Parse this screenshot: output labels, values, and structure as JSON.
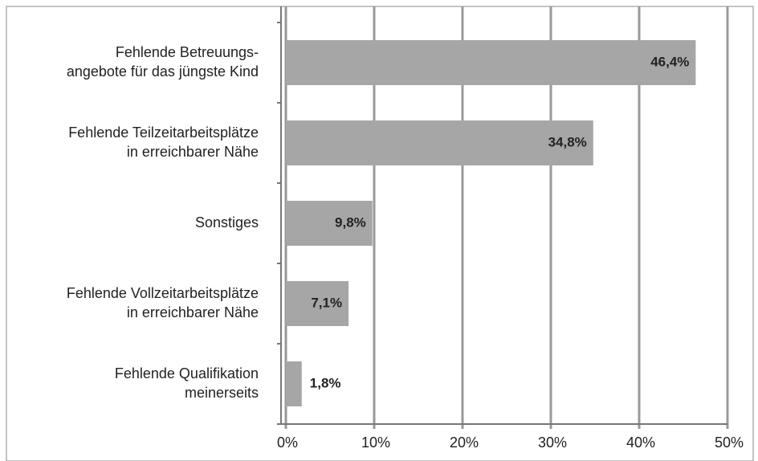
{
  "chart_data": {
    "type": "bar",
    "orientation": "horizontal",
    "categories": [
      [
        "Fehlende Betreuungs-",
        "angebote für das jüngste Kind"
      ],
      [
        "Fehlende Teilzeitarbeitsplätze",
        "in erreichbarer Nähe"
      ],
      [
        "Sonstiges"
      ],
      [
        "Fehlende Vollzeitarbeitsplätze",
        "in erreichbarer Nähe"
      ],
      [
        "Fehlende Qualifikation",
        "meinerseits"
      ]
    ],
    "values": [
      46.4,
      34.8,
      9.8,
      7.1,
      1.8
    ],
    "value_labels": [
      "46,4%",
      "34,8%",
      "9,8%",
      "7,1%",
      "1,8%"
    ],
    "color": "#a6a6a6",
    "xlim": [
      0,
      50
    ],
    "xticks": [
      {
        "value": 0,
        "label": "0%"
      },
      {
        "value": 10,
        "label": "10%"
      },
      {
        "value": 20,
        "label": "20%"
      },
      {
        "value": 30,
        "label": "30%"
      },
      {
        "value": 40,
        "label": "40%"
      },
      {
        "value": 50,
        "label": "50%"
      }
    ],
    "grid": true
  }
}
